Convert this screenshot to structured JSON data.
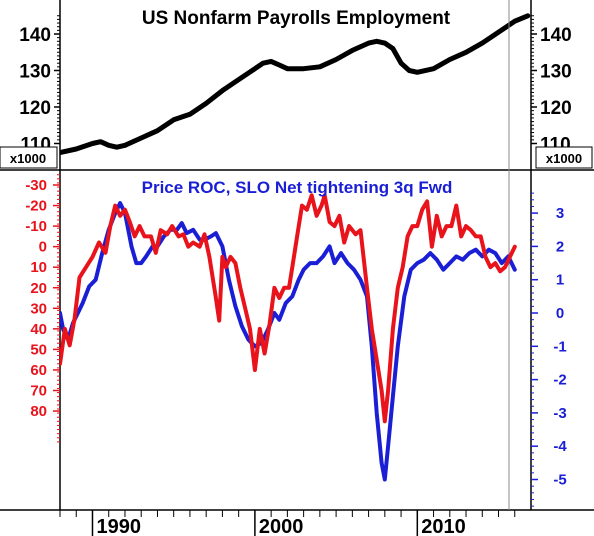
{
  "chart_data": [
    {
      "type": "line",
      "title": "US Nonfarm Payrolls Employment",
      "unit_label": "x1000",
      "color": "#000000",
      "ylim": [
        110,
        146
      ],
      "yticks_left": [
        "140",
        "130",
        "120",
        "110"
      ],
      "yticks_right": [
        "140",
        "130",
        "120",
        "110"
      ],
      "series": [
        {
          "values": [
            [
              1988.0,
              107.5
            ],
            [
              1989.0,
              108.5
            ],
            [
              1990.0,
              110.0
            ],
            [
              1990.5,
              110.5
            ],
            [
              1991.0,
              109.5
            ],
            [
              1991.5,
              109.0
            ],
            [
              1992.0,
              109.5
            ],
            [
              1993.0,
              111.5
            ],
            [
              1994.0,
              113.5
            ],
            [
              1995.0,
              116.5
            ],
            [
              1996.0,
              118.0
            ],
            [
              1997.0,
              121.0
            ],
            [
              1998.0,
              124.5
            ],
            [
              1999.0,
              127.5
            ],
            [
              2000.0,
              130.5
            ],
            [
              2000.5,
              132.0
            ],
            [
              2001.0,
              132.5
            ],
            [
              2001.5,
              131.5
            ],
            [
              2002.0,
              130.5
            ],
            [
              2003.0,
              130.5
            ],
            [
              2004.0,
              131.0
            ],
            [
              2005.0,
              133.0
            ],
            [
              2006.0,
              135.5
            ],
            [
              2007.0,
              137.5
            ],
            [
              2007.5,
              138.0
            ],
            [
              2008.0,
              137.5
            ],
            [
              2008.5,
              136.0
            ],
            [
              2009.0,
              132.0
            ],
            [
              2009.5,
              130.0
            ],
            [
              2010.0,
              129.5
            ],
            [
              2011.0,
              130.5
            ],
            [
              2012.0,
              133.0
            ],
            [
              2013.0,
              135.0
            ],
            [
              2014.0,
              137.5
            ],
            [
              2015.0,
              140.5
            ],
            [
              2016.0,
              143.5
            ],
            [
              2016.8,
              145.0
            ]
          ]
        }
      ]
    },
    {
      "type": "line",
      "title": "Price ROC, SLO Net tightening 3q Fwd",
      "xlim": [
        1988.0,
        2017.0
      ],
      "xticks": [
        "1990",
        "2000",
        "2010"
      ],
      "y_left": {
        "color": "#e8131b",
        "ylim": [
          -35,
          95
        ],
        "inverted": true,
        "ticks": [
          "-30",
          "-20",
          "-10",
          "0",
          "10",
          "20",
          "30",
          "40",
          "50",
          "60",
          "70",
          "80"
        ]
      },
      "y_right": {
        "color": "#1a1fd6",
        "ylim": [
          -6,
          4
        ],
        "ticks": [
          "3",
          "2",
          "1",
          "0",
          "-1",
          "-2",
          "-3",
          "-4",
          "-5"
        ]
      },
      "series": [
        {
          "axis": "left",
          "color": "#e8131b",
          "values": [
            [
              1988.0,
              57
            ],
            [
              1988.3,
              40
            ],
            [
              1988.6,
              48
            ],
            [
              1988.9,
              35
            ],
            [
              1989.2,
              15
            ],
            [
              1989.6,
              10
            ],
            [
              1990.0,
              5
            ],
            [
              1990.4,
              -2
            ],
            [
              1990.8,
              3
            ],
            [
              1991.1,
              -10
            ],
            [
              1991.4,
              -20
            ],
            [
              1991.7,
              -15
            ],
            [
              1992.0,
              -18
            ],
            [
              1992.3,
              -12
            ],
            [
              1992.6,
              -5
            ],
            [
              1992.9,
              -10
            ],
            [
              1993.2,
              -5
            ],
            [
              1993.6,
              -5
            ],
            [
              1993.9,
              3
            ],
            [
              1994.2,
              -8
            ],
            [
              1994.6,
              -6
            ],
            [
              1994.9,
              -10
            ],
            [
              1995.3,
              -5
            ],
            [
              1995.6,
              -6
            ],
            [
              1995.9,
              0
            ],
            [
              1996.2,
              -2
            ],
            [
              1996.6,
              0
            ],
            [
              1996.9,
              -6
            ],
            [
              1997.2,
              5
            ],
            [
              1997.6,
              25
            ],
            [
              1997.8,
              36
            ],
            [
              1998.0,
              5
            ],
            [
              1998.2,
              10
            ],
            [
              1998.5,
              5
            ],
            [
              1998.8,
              8
            ],
            [
              1999.1,
              20
            ],
            [
              1999.4,
              30
            ],
            [
              1999.7,
              40
            ],
            [
              2000.0,
              60
            ],
            [
              2000.3,
              40
            ],
            [
              2000.6,
              52
            ],
            [
              2000.9,
              38
            ],
            [
              2001.2,
              20
            ],
            [
              2001.5,
              25
            ],
            [
              2001.8,
              20
            ],
            [
              2002.1,
              20
            ],
            [
              2002.3,
              10
            ],
            [
              2002.6,
              -5
            ],
            [
              2002.9,
              -20
            ],
            [
              2003.2,
              -18
            ],
            [
              2003.5,
              -25
            ],
            [
              2003.8,
              -15
            ],
            [
              2004.1,
              -20
            ],
            [
              2004.3,
              -25
            ],
            [
              2004.6,
              -12
            ],
            [
              2004.9,
              -10
            ],
            [
              2005.2,
              -15
            ],
            [
              2005.5,
              -2
            ],
            [
              2005.8,
              -10
            ],
            [
              2006.2,
              -6
            ],
            [
              2006.5,
              -8
            ],
            [
              2006.9,
              20
            ],
            [
              2007.2,
              40
            ],
            [
              2007.5,
              55
            ],
            [
              2007.8,
              70
            ],
            [
              2008.0,
              85
            ],
            [
              2008.2,
              70
            ],
            [
              2008.5,
              40
            ],
            [
              2008.8,
              20
            ],
            [
              2009.1,
              10
            ],
            [
              2009.4,
              -5
            ],
            [
              2009.7,
              -10
            ],
            [
              2010.0,
              -10
            ],
            [
              2010.3,
              -18
            ],
            [
              2010.6,
              -22
            ],
            [
              2010.9,
              0
            ],
            [
              2011.2,
              -15
            ],
            [
              2011.5,
              -5
            ],
            [
              2011.8,
              -10
            ],
            [
              2012.1,
              -10
            ],
            [
              2012.4,
              -20
            ],
            [
              2012.7,
              -5
            ],
            [
              2013.0,
              -10
            ],
            [
              2013.3,
              -8
            ],
            [
              2013.6,
              -5
            ],
            [
              2013.9,
              -5
            ],
            [
              2014.2,
              5
            ],
            [
              2014.5,
              10
            ],
            [
              2014.8,
              8
            ],
            [
              2015.1,
              12
            ],
            [
              2015.4,
              10
            ],
            [
              2015.7,
              5
            ],
            [
              2016.0,
              0
            ]
          ]
        },
        {
          "axis": "right",
          "color": "#1a1fd6",
          "values": [
            [
              1988.0,
              0.0
            ],
            [
              1988.2,
              -0.5
            ],
            [
              1988.5,
              -0.8
            ],
            [
              1988.8,
              -0.3
            ],
            [
              1989.1,
              0.0
            ],
            [
              1989.4,
              0.3
            ],
            [
              1989.8,
              0.8
            ],
            [
              1990.2,
              1.0
            ],
            [
              1990.6,
              1.8
            ],
            [
              1991.0,
              2.5
            ],
            [
              1991.4,
              3.0
            ],
            [
              1991.7,
              3.3
            ],
            [
              1992.0,
              3.0
            ],
            [
              1992.4,
              2.0
            ],
            [
              1992.7,
              1.5
            ],
            [
              1993.0,
              1.5
            ],
            [
              1993.3,
              1.7
            ],
            [
              1993.7,
              2.0
            ],
            [
              1994.0,
              2.0
            ],
            [
              1994.4,
              2.3
            ],
            [
              1994.8,
              2.5
            ],
            [
              1995.2,
              2.5
            ],
            [
              1995.5,
              2.7
            ],
            [
              1995.8,
              2.4
            ],
            [
              1996.2,
              2.5
            ],
            [
              1996.6,
              2.2
            ],
            [
              1996.9,
              2.2
            ],
            [
              1997.3,
              2.3
            ],
            [
              1997.6,
              2.4
            ],
            [
              1998.0,
              2.0
            ],
            [
              1998.4,
              1.0
            ],
            [
              1998.8,
              0.2
            ],
            [
              1999.2,
              -0.4
            ],
            [
              1999.6,
              -0.8
            ],
            [
              2000.0,
              -1.0
            ],
            [
              2000.4,
              -0.9
            ],
            [
              2000.8,
              -0.5
            ],
            [
              2001.2,
              0.0
            ],
            [
              2001.5,
              -0.2
            ],
            [
              2001.9,
              0.3
            ],
            [
              2002.3,
              0.5
            ],
            [
              2002.7,
              1.0
            ],
            [
              2003.0,
              1.3
            ],
            [
              2003.4,
              1.5
            ],
            [
              2003.8,
              1.5
            ],
            [
              2004.2,
              1.7
            ],
            [
              2004.6,
              2.0
            ],
            [
              2004.9,
              1.5
            ],
            [
              2005.3,
              1.8
            ],
            [
              2005.7,
              1.5
            ],
            [
              2006.1,
              1.3
            ],
            [
              2006.5,
              1.0
            ],
            [
              2006.9,
              0.5
            ],
            [
              2007.2,
              -1.0
            ],
            [
              2007.5,
              -3.0
            ],
            [
              2007.8,
              -4.5
            ],
            [
              2008.0,
              -5.0
            ],
            [
              2008.2,
              -4.0
            ],
            [
              2008.5,
              -2.5
            ],
            [
              2008.8,
              -1.0
            ],
            [
              2009.2,
              0.5
            ],
            [
              2009.6,
              1.3
            ],
            [
              2010.0,
              1.5
            ],
            [
              2010.4,
              1.6
            ],
            [
              2010.8,
              1.8
            ],
            [
              2011.2,
              1.6
            ],
            [
              2011.6,
              1.3
            ],
            [
              2012.0,
              1.5
            ],
            [
              2012.4,
              1.7
            ],
            [
              2012.8,
              1.6
            ],
            [
              2013.2,
              1.8
            ],
            [
              2013.6,
              1.9
            ],
            [
              2014.0,
              1.7
            ],
            [
              2014.4,
              1.9
            ],
            [
              2014.8,
              1.8
            ],
            [
              2015.2,
              1.5
            ],
            [
              2015.6,
              1.7
            ],
            [
              2016.0,
              1.3
            ]
          ]
        }
      ]
    }
  ]
}
